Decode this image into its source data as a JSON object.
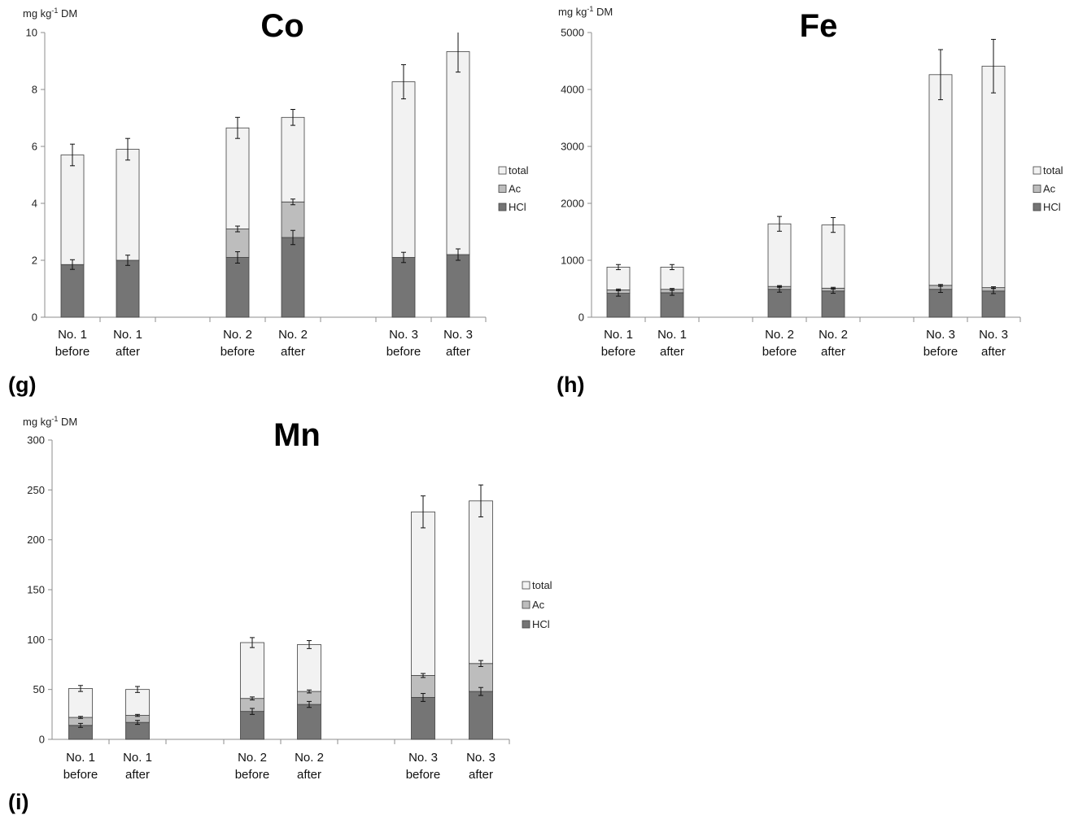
{
  "panels": [
    {
      "label": "(g)"
    },
    {
      "label": "(h)"
    },
    {
      "label": "(i)"
    }
  ],
  "colors": {
    "HCl": "#757575",
    "Ac": "#bdbdbd",
    "total": "#f2f2f2",
    "stroke": "#404040",
    "axis": "#8c8c8c"
  },
  "chart_data": [
    {
      "type": "bar",
      "stacked": true,
      "title": "Co",
      "ylabel": "mg kg-1 DM",
      "ylim": [
        0,
        10
      ],
      "yticks": [
        0,
        2,
        4,
        6,
        8,
        10
      ],
      "categories": [
        [
          "No. 1",
          "before"
        ],
        [
          "No. 1",
          "after"
        ],
        [
          "No. 2",
          "before"
        ],
        [
          "No. 2",
          "after"
        ],
        [
          "No. 3",
          "before"
        ],
        [
          "No. 3",
          "after"
        ]
      ],
      "legend": [
        "total",
        "Ac",
        "HCl"
      ],
      "legend_position": "right",
      "series": [
        {
          "name": "HCl",
          "values": [
            1.85,
            2.0,
            2.1,
            2.8,
            2.1,
            2.2
          ],
          "errors": [
            0.17,
            0.18,
            0.2,
            0.25,
            0.18,
            0.2
          ]
        },
        {
          "name": "Ac",
          "values": [
            1.85,
            2.0,
            3.1,
            4.05,
            2.1,
            2.2
          ],
          "errors": [
            0,
            0,
            0.1,
            0.1,
            0,
            0
          ]
        },
        {
          "name": "total",
          "values": [
            5.7,
            5.9,
            6.65,
            7.02,
            8.27,
            9.33
          ],
          "errors": [
            0.38,
            0.38,
            0.37,
            0.28,
            0.6,
            0.72
          ]
        }
      ]
    },
    {
      "type": "bar",
      "stacked": true,
      "title": "Fe",
      "ylabel": "mg kg-1 DM",
      "ylim": [
        0,
        5000
      ],
      "yticks": [
        0,
        1000,
        2000,
        3000,
        4000,
        5000
      ],
      "categories": [
        [
          "No. 1",
          "before"
        ],
        [
          "No. 1",
          "after"
        ],
        [
          "No. 2",
          "before"
        ],
        [
          "No. 2",
          "after"
        ],
        [
          "No. 3",
          "before"
        ],
        [
          "No. 3",
          "after"
        ]
      ],
      "legend": [
        "total",
        "Ac",
        "HCl"
      ],
      "legend_position": "right",
      "series": [
        {
          "name": "HCl",
          "values": [
            420,
            430,
            490,
            460,
            490,
            460
          ],
          "errors": [
            50,
            45,
            50,
            40,
            55,
            45
          ]
        },
        {
          "name": "Ac",
          "values": [
            480,
            490,
            540,
            510,
            560,
            520
          ],
          "errors": [
            15,
            15,
            15,
            15,
            15,
            15
          ]
        },
        {
          "name": "total",
          "values": [
            880,
            880,
            1640,
            1620,
            4260,
            4410
          ],
          "errors": [
            45,
            45,
            130,
            130,
            440,
            470
          ]
        }
      ]
    },
    {
      "type": "bar",
      "stacked": true,
      "title": "Mn",
      "ylabel": "mg kg-1 DM",
      "ylim": [
        0,
        300
      ],
      "yticks": [
        0,
        50,
        100,
        150,
        200,
        250,
        300
      ],
      "categories": [
        [
          "No. 1",
          "before"
        ],
        [
          "No. 1",
          "after"
        ],
        [
          "No. 2",
          "before"
        ],
        [
          "No. 2",
          "after"
        ],
        [
          "No. 3",
          "before"
        ],
        [
          "No. 3",
          "after"
        ]
      ],
      "legend": [
        "total",
        "Ac",
        "HCl"
      ],
      "legend_position": "right",
      "series": [
        {
          "name": "HCl",
          "values": [
            14,
            17,
            28,
            35,
            42,
            48
          ],
          "errors": [
            2,
            2,
            3,
            3,
            4,
            4
          ]
        },
        {
          "name": "Ac",
          "values": [
            22,
            24,
            41,
            48,
            64,
            76
          ],
          "errors": [
            1,
            1,
            1.5,
            1.5,
            2,
            3
          ]
        },
        {
          "name": "total",
          "values": [
            51,
            50,
            97,
            95,
            228,
            239
          ],
          "errors": [
            3,
            3,
            5,
            4,
            16,
            16
          ]
        }
      ]
    }
  ]
}
